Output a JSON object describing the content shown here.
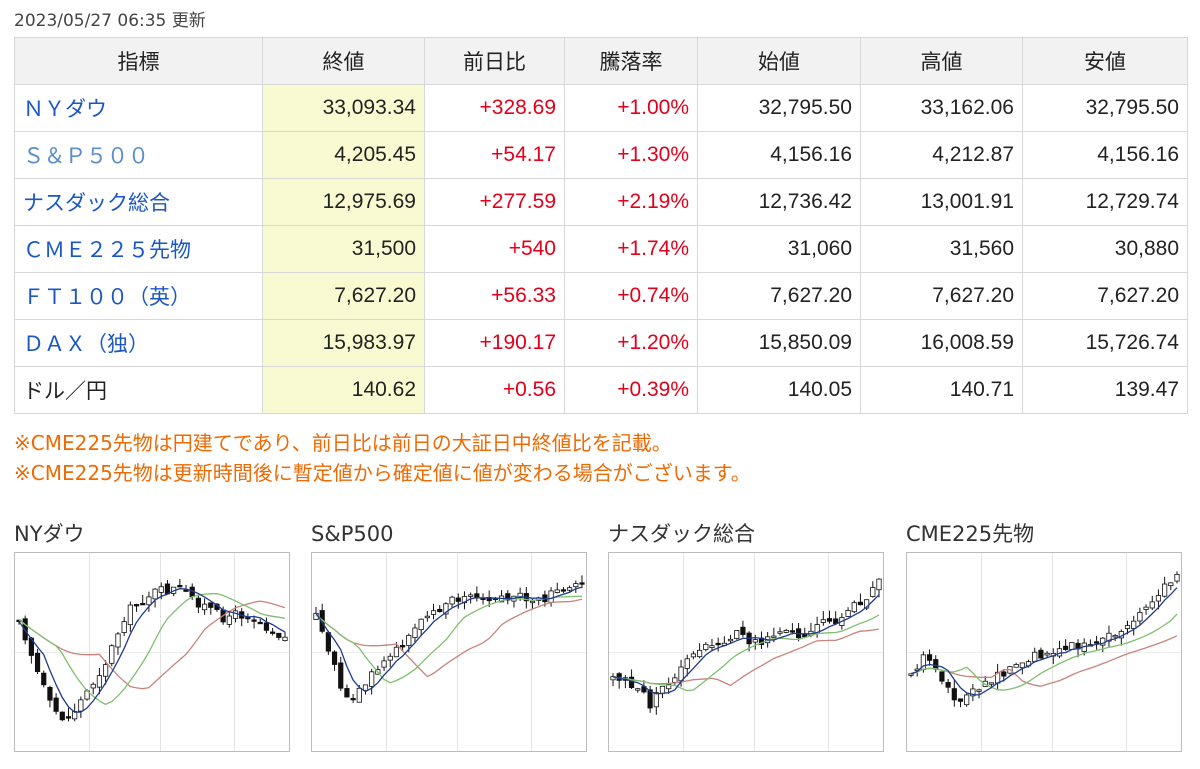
{
  "updated": "2023/05/27 06:35 更新",
  "table": {
    "headers": [
      "指標",
      "終値",
      "前日比",
      "騰落率",
      "始値",
      "高値",
      "安値"
    ],
    "rows": [
      {
        "name": "ＮＹダウ",
        "link": true,
        "close": "33,093.34",
        "change": "+328.69",
        "rate": "+1.00%",
        "open": "32,795.50",
        "high": "33,162.06",
        "low": "32,795.50"
      },
      {
        "name": "Ｓ＆Ｐ５００",
        "link": true,
        "light": true,
        "close": "4,205.45",
        "change": "+54.17",
        "rate": "+1.30%",
        "open": "4,156.16",
        "high": "4,212.87",
        "low": "4,156.16"
      },
      {
        "name": "ナスダック総合",
        "link": true,
        "close": "12,975.69",
        "change": "+277.59",
        "rate": "+2.19%",
        "open": "12,736.42",
        "high": "13,001.91",
        "low": "12,729.74"
      },
      {
        "name": "ＣＭＥ２２５先物",
        "link": true,
        "close": "31,500",
        "change": "+540",
        "rate": "+1.74%",
        "open": "31,060",
        "high": "31,560",
        "low": "30,880"
      },
      {
        "name": "ＦＴ１００（英）",
        "link": true,
        "close": "7,627.20",
        "change": "+56.33",
        "rate": "+0.74%",
        "open": "7,627.20",
        "high": "7,627.20",
        "low": "7,627.20"
      },
      {
        "name": "ＤＡＸ（独）",
        "link": true,
        "close": "15,983.97",
        "change": "+190.17",
        "rate": "+1.20%",
        "open": "15,850.09",
        "high": "16,008.59",
        "low": "15,726.74"
      },
      {
        "name": "ドル／円",
        "link": false,
        "close": "140.62",
        "change": "+0.56",
        "rate": "+0.39%",
        "open": "140.05",
        "high": "140.71",
        "low": "139.47"
      }
    ]
  },
  "notes": [
    "※CME225先物は円建てであり、前日比は前日の大証日中終値比を記載。",
    "※CME225先物は更新時間後に暫定値から確定値に値が変わる場合がございます。"
  ],
  "charts": [
    {
      "title": "NYダウ",
      "trend": "v-recovery-then-fade"
    },
    {
      "title": "S&P500",
      "trend": "dip-then-rise"
    },
    {
      "title": "ナスダック総合",
      "trend": "steady-rise"
    },
    {
      "title": "CME225先物",
      "trend": "steady-rise-strong"
    }
  ],
  "colors": {
    "positive": "#e3001b",
    "link": "#1a57c4",
    "note": "#ee6a05",
    "close_highlight": "#fafad2",
    "ma_short": "#1f3c8c",
    "ma_mid": "#7fbf6f",
    "ma_long": "#c9837c"
  }
}
